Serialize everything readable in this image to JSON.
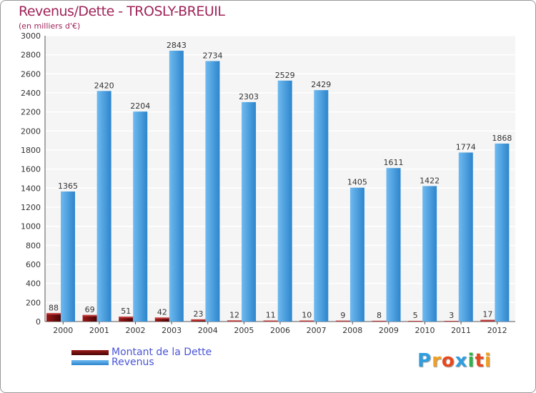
{
  "chart_data": {
    "type": "bar",
    "title": "Revenus/Dette - TROSLY-BREUIL",
    "subtitle": "(en milliers d'€)",
    "categories": [
      "2000",
      "2001",
      "2002",
      "2003",
      "2004",
      "2005",
      "2006",
      "2007",
      "2008",
      "2009",
      "2010",
      "2011",
      "2012"
    ],
    "series": [
      {
        "name": "Montant de la Dette",
        "color": "#6b0a0a",
        "values": [
          88,
          69,
          51,
          42,
          23,
          12,
          11,
          10,
          9,
          8,
          5,
          3,
          17
        ]
      },
      {
        "name": "Revenus",
        "color": "#4aa3e6",
        "values": [
          1365,
          2420,
          2204,
          2843,
          2734,
          2303,
          2529,
          2429,
          1405,
          1611,
          1422,
          1774,
          1868
        ]
      }
    ],
    "ylim": [
      0,
      3000
    ],
    "yticks": [
      0,
      200,
      400,
      600,
      800,
      1000,
      1200,
      1400,
      1600,
      1800,
      2000,
      2200,
      2400,
      2600,
      2800,
      3000
    ],
    "grid": true,
    "legend_position": "bottom-left"
  },
  "logo": {
    "text": "Proxiti",
    "colors": [
      "#2e9ee0",
      "#f0a020",
      "#e8481c",
      "#2e9ee0",
      "#2db34a",
      "#e8481c",
      "#f0a020"
    ]
  }
}
